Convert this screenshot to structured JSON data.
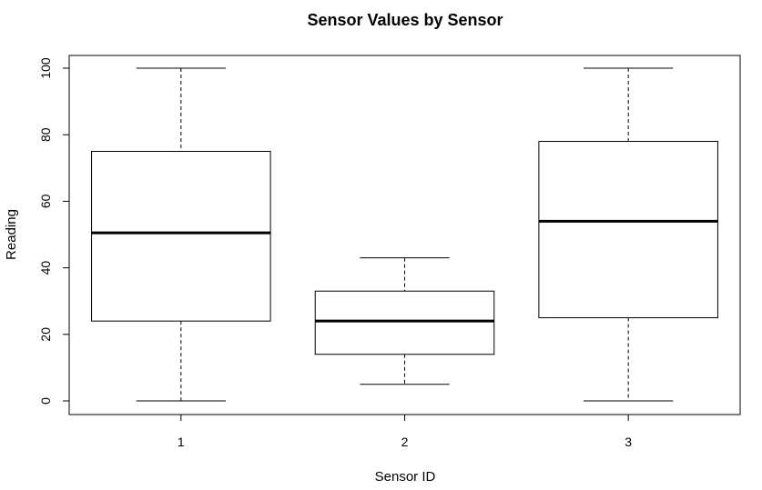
{
  "chart_data": {
    "type": "boxplot",
    "title": "Sensor Values by Sensor",
    "xlabel": "Sensor ID",
    "ylabel": "Reading",
    "ylim": [
      -4,
      104
    ],
    "yticks": [
      0,
      20,
      40,
      60,
      80,
      100
    ],
    "categories": [
      "1",
      "2",
      "3"
    ],
    "boxes": [
      {
        "category": "1",
        "min": 0,
        "q1": 24,
        "median": 50.5,
        "q3": 75,
        "max": 100
      },
      {
        "category": "2",
        "min": 5,
        "q1": 14,
        "median": 24,
        "q3": 33,
        "max": 43
      },
      {
        "category": "3",
        "min": 0,
        "q1": 25,
        "median": 54,
        "q3": 78,
        "max": 100
      }
    ],
    "grid": false,
    "legend": "none"
  }
}
